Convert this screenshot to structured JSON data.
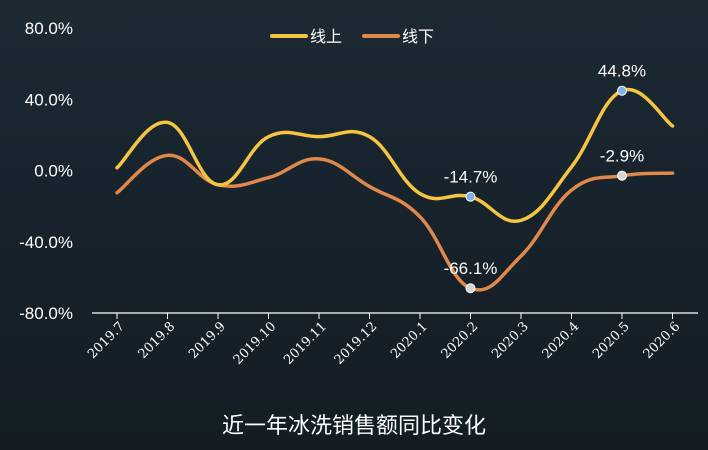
{
  "caption": "近一年冰洗销售额同比变化",
  "chart_data": {
    "type": "line",
    "categories": [
      "2019.7",
      "2019.8",
      "2019.9",
      "2019.10",
      "2019.11",
      "2019.12",
      "2020.1",
      "2020.2",
      "2020.3",
      "2020.4",
      "2020.5",
      "2020.6"
    ],
    "series": [
      {
        "name": "线上",
        "color": "#f5c542",
        "values": [
          1.5,
          27.0,
          -8.0,
          19.0,
          19.0,
          19.0,
          -13.0,
          -14.7,
          -28.0,
          2.0,
          44.8,
          25.0
        ]
      },
      {
        "name": "线下",
        "color": "#e0894a",
        "values": [
          -12.5,
          8.5,
          -8.0,
          -4.0,
          6.5,
          -9.0,
          -26.0,
          -66.1,
          -48.0,
          -11.0,
          -2.9,
          -1.5
        ]
      }
    ],
    "ylim": [
      -80,
      80
    ],
    "yticks": [
      "80.0%",
      "40.0%",
      "0.0%",
      "-40.0%",
      "-80.0%"
    ],
    "ytick_values": [
      80,
      40,
      0,
      -40,
      -80
    ],
    "legend_position": "top-center",
    "annotations": [
      {
        "series": 0,
        "index": 7,
        "text": "-14.7%",
        "marker_color": "#7fb3e6",
        "label_side": "above"
      },
      {
        "series": 0,
        "index": 10,
        "text": "44.8%",
        "marker_color": "#7fb3e6",
        "label_side": "above"
      },
      {
        "series": 1,
        "index": 7,
        "text": "-66.1%",
        "marker_color": "#d6d6d6",
        "label_side": "above"
      },
      {
        "series": 1,
        "index": 10,
        "text": "-2.9%",
        "marker_color": "#d6d6d6",
        "label_side": "above"
      }
    ]
  }
}
